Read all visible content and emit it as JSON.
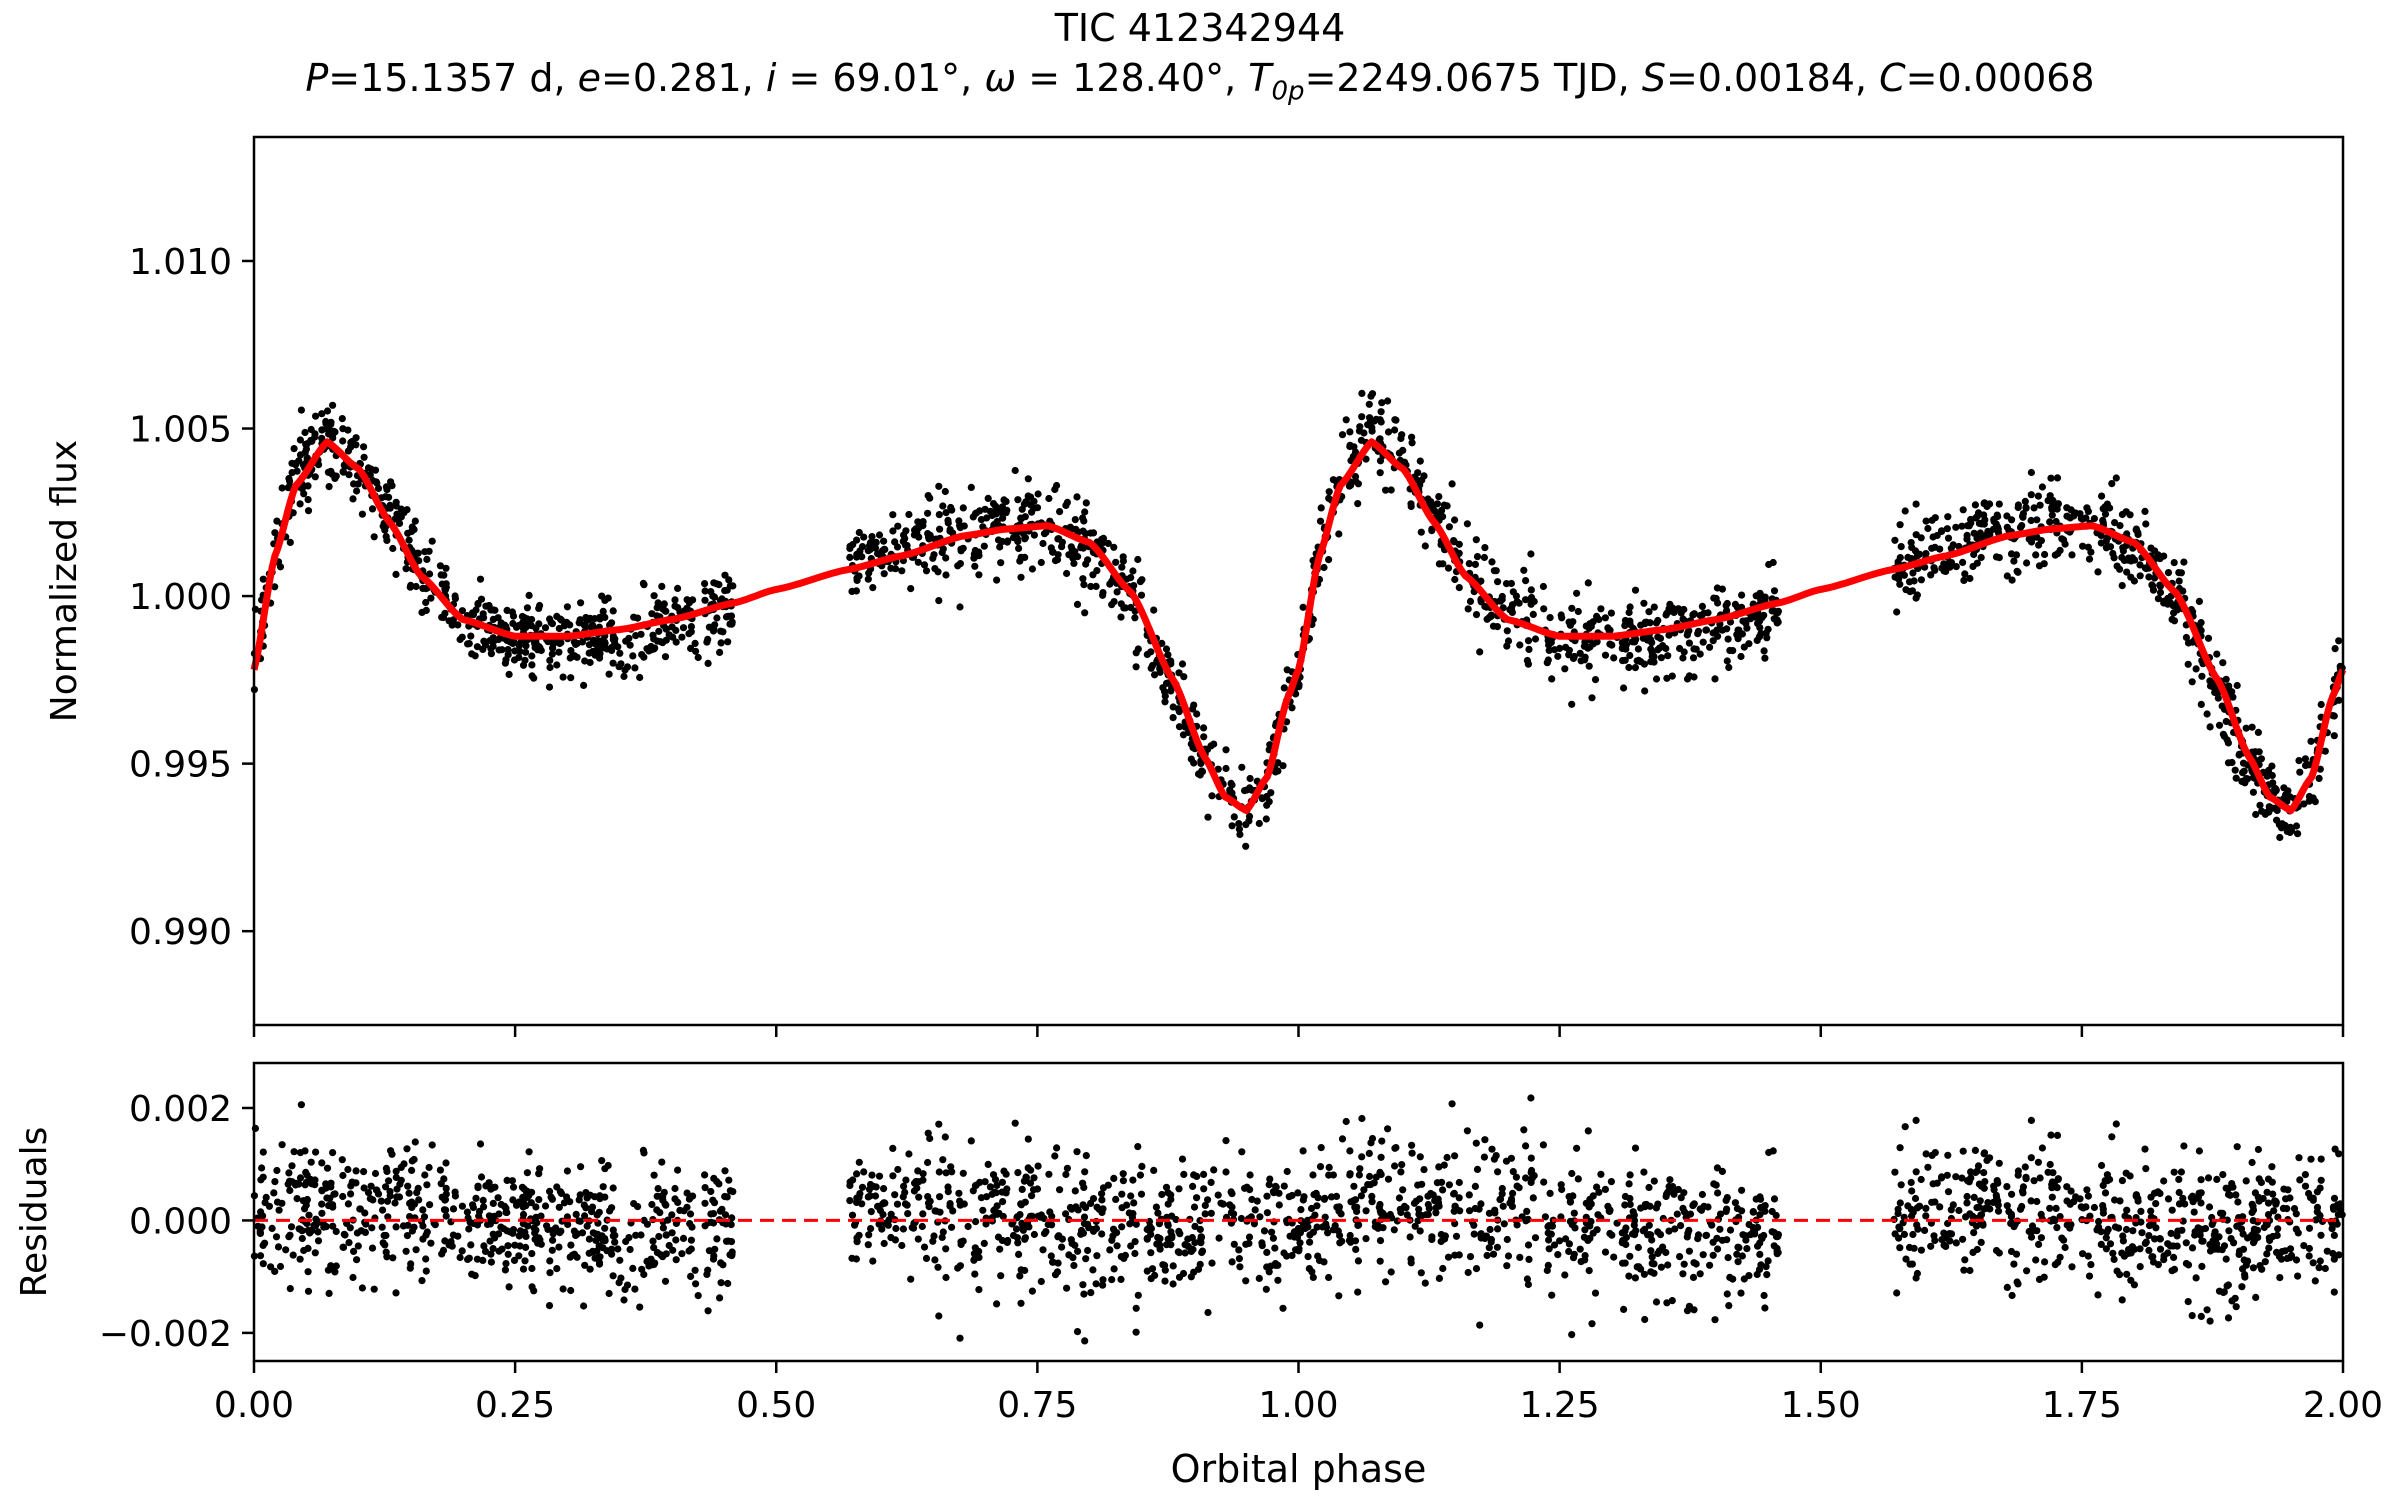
{
  "title": "TIC 412342944",
  "parameters": {
    "P_label": "P",
    "P_value": "=15.1357 d, ",
    "e_label": "e",
    "e_value": "=0.281, ",
    "i_label": "i",
    "i_value": " = 69.01°, ",
    "omega_label": "ω",
    "omega_value": " = 128.40°, ",
    "T_label": "T",
    "T_sub": "0p",
    "T_value": "=2249.0675 TJD, ",
    "S_label": "S",
    "S_value": "=0.00184, ",
    "C_label": "C",
    "C_value": "=0.00068"
  },
  "colors": {
    "model": "#ff0000",
    "points": "#000000",
    "zero_line": "#ff0000"
  },
  "chart_data": [
    {
      "type": "scatter",
      "name": "lightcurve",
      "ylabel": "Normalized flux",
      "xlabel": "",
      "xlim": [
        0.0,
        2.0
      ],
      "ylim": [
        0.9872,
        1.0137
      ],
      "yticks": [
        0.99,
        0.995,
        1.0,
        1.005,
        1.01
      ],
      "ytick_labels": [
        "0.990",
        "0.995",
        "1.000",
        "1.005",
        "1.010"
      ],
      "xticks": [
        0.0,
        0.25,
        0.5,
        0.75,
        1.0,
        1.25,
        1.5,
        1.75,
        2.0
      ],
      "phase_coverage": [
        [
          0.0,
          0.46
        ],
        [
          0.57,
          1.0
        ]
      ],
      "scatter_sigma": 0.0007,
      "series": [
        {
          "name": "model",
          "style": "line",
          "color": "#ff0000",
          "x": [
            0.0,
            0.02,
            0.04,
            0.07,
            0.1,
            0.13,
            0.16,
            0.2,
            0.25,
            0.3,
            0.35,
            0.4,
            0.46,
            0.5,
            0.57,
            0.62,
            0.68,
            0.72,
            0.76,
            0.8,
            0.84,
            0.88,
            0.91,
            0.93,
            0.95,
            0.97,
            0.99,
            1.0
          ],
          "y": [
            0.9978,
            1.0012,
            1.0033,
            1.0046,
            1.0038,
            1.0022,
            1.0006,
            0.9993,
            0.9988,
            0.9988,
            0.999,
            0.9993,
            0.9998,
            1.0002,
            1.0008,
            1.0012,
            1.0018,
            1.002,
            1.0021,
            1.0016,
            1.0001,
            0.9975,
            0.9952,
            0.994,
            0.9936,
            0.9946,
            0.997,
            0.9978
          ]
        },
        {
          "name": "observations",
          "style": "points",
          "color": "#000000"
        }
      ]
    },
    {
      "type": "scatter",
      "name": "residuals",
      "ylabel": "Residuals",
      "xlabel": "Orbital phase",
      "xlim": [
        0.0,
        2.0
      ],
      "ylim": [
        -0.0025,
        0.0028
      ],
      "yticks": [
        -0.002,
        0.0,
        0.002
      ],
      "ytick_labels": [
        "−0.002",
        "0.000",
        "0.002"
      ],
      "xticks": [
        0.0,
        0.25,
        0.5,
        0.75,
        1.0,
        1.25,
        1.5,
        1.75,
        2.0
      ],
      "xtick_labels": [
        "0.00",
        "0.25",
        "0.50",
        "0.75",
        "1.00",
        "1.25",
        "1.50",
        "1.75",
        "2.00"
      ],
      "zero_line": 0.0,
      "scatter_sigma": 0.0006,
      "series": [
        {
          "name": "residuals",
          "style": "points",
          "color": "#000000"
        }
      ]
    }
  ]
}
